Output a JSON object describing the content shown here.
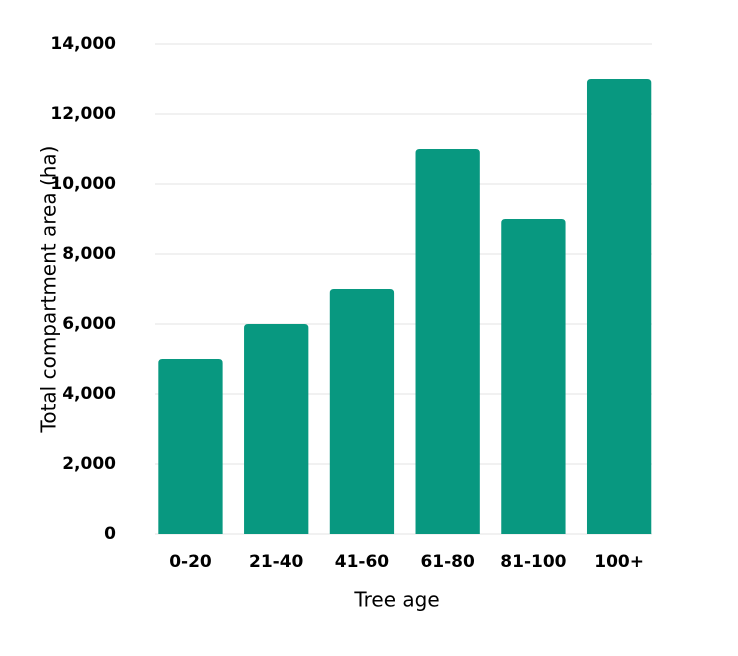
{
  "chart_data": {
    "type": "bar",
    "x_label": "Tree age",
    "y_label": "Total compartment area (ha)",
    "categories": [
      "0-20",
      "21-40",
      "41-60",
      "61-80",
      "81-100",
      "100+"
    ],
    "values": [
      5000,
      6000,
      7000,
      11000,
      9000,
      13000
    ],
    "color": "#089880",
    "ylim": [
      0,
      14000
    ],
    "yticks": [
      0,
      {
        "value": 2000,
        "label": "2,000"
      },
      {
        "value": 4000,
        "label": "4,000"
      },
      {
        "value": 6000,
        "label": "6,000"
      },
      {
        "value": 8000,
        "label": "8,000"
      },
      {
        "value": 10000,
        "label": "10,000"
      },
      {
        "value": 12000,
        "label": "12,000"
      },
      {
        "value": 14000,
        "label": "14,000"
      }
    ],
    "grid": true
  }
}
